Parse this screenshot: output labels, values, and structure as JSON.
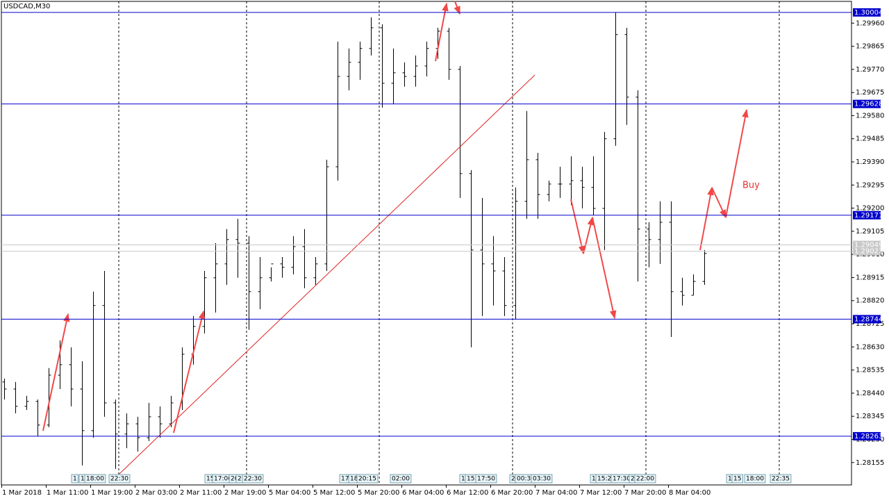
{
  "chart_data": {
    "type": "ohlc",
    "title": "USDCAD,M30",
    "categories": [
      "1 Mar 2018",
      null,
      null,
      null,
      "1 Mar 11:00",
      null,
      null,
      null,
      "1 Mar 19:00",
      null,
      null,
      null,
      "2 Mar 03:00",
      null,
      null,
      null,
      "2 Mar 11:00",
      null,
      null,
      null,
      "2 Mar 19:00",
      null,
      null,
      null,
      "5 Mar 04:00",
      null,
      null,
      null,
      "5 Mar 12:00",
      null,
      null,
      null,
      "5 Mar 20:00",
      null,
      null,
      null,
      "6 Mar 04:00",
      null,
      null,
      null,
      "6 Mar 12:00",
      null,
      null,
      null,
      "6 Mar 20:00",
      null,
      null,
      null,
      "7 Mar 04:00",
      null,
      null,
      null,
      "7 Mar 12:00",
      null,
      null,
      null,
      "7 Mar 20:00",
      null,
      null,
      null,
      "8 Mar 04:00",
      null,
      null,
      null
    ],
    "bars": [
      [
        1.28486,
        1.285,
        1.28414,
        1.28457
      ],
      [
        1.28457,
        1.28486,
        1.28357,
        1.28386
      ],
      [
        1.28386,
        1.28429,
        1.28371,
        1.28406
      ],
      [
        1.28406,
        1.28414,
        1.28263,
        1.28309
      ],
      [
        1.28309,
        1.28543,
        1.283,
        1.28514
      ],
      [
        1.28514,
        1.28657,
        1.28457,
        1.28557
      ],
      [
        1.28557,
        1.28628,
        1.28386,
        1.28457
      ],
      [
        1.28457,
        1.28571,
        1.28143,
        1.28286
      ],
      [
        1.28286,
        1.28857,
        1.28257,
        1.288
      ],
      [
        1.288,
        1.28942,
        1.28343,
        1.284
      ],
      [
        1.284,
        1.28414,
        1.28129,
        1.28272
      ],
      [
        1.28272,
        1.28357,
        1.28214,
        1.28314
      ],
      [
        1.28314,
        1.28343,
        1.282,
        1.28257
      ],
      [
        1.28257,
        1.284,
        1.28243,
        1.28343
      ],
      [
        1.28343,
        1.28386,
        1.28257,
        1.28314
      ],
      [
        1.28314,
        1.28429,
        1.283,
        1.284
      ],
      [
        1.284,
        1.28628,
        1.28371,
        1.286
      ],
      [
        1.286,
        1.28757,
        1.28557,
        1.28714
      ],
      [
        1.28714,
        1.28942,
        1.28685,
        1.28914
      ],
      [
        1.28914,
        1.29056,
        1.28771,
        1.28971
      ],
      [
        1.28971,
        1.29114,
        1.28885,
        1.29071
      ],
      [
        1.29071,
        1.29156,
        1.28914,
        1.29056
      ],
      [
        1.29056,
        1.29085,
        1.287,
        1.28857
      ],
      [
        1.28857,
        1.28999,
        1.28785,
        1.28914
      ],
      [
        1.28914,
        1.28957,
        1.28899,
        1.28971
      ],
      [
        1.28971,
        1.28999,
        1.28914,
        1.28957
      ],
      [
        1.28957,
        1.29085,
        1.28928,
        1.29042
      ],
      [
        1.29042,
        1.29114,
        1.28871,
        1.28914
      ],
      [
        1.28914,
        1.28999,
        1.28885,
        1.28971
      ],
      [
        1.28971,
        1.29399,
        1.28942,
        1.2937
      ],
      [
        1.2937,
        1.29884,
        1.29313,
        1.29741
      ],
      [
        1.29741,
        1.29856,
        1.29684,
        1.29799
      ],
      [
        1.29799,
        1.29884,
        1.29727,
        1.29856
      ],
      [
        1.29856,
        1.29984,
        1.29827,
        1.29941
      ],
      [
        1.29941,
        1.29955,
        1.29613,
        1.29713
      ],
      [
        1.29713,
        1.29856,
        1.29627,
        1.29756
      ],
      [
        1.29756,
        1.29799,
        1.29699,
        1.29741
      ],
      [
        1.29741,
        1.29827,
        1.29699,
        1.29784
      ],
      [
        1.29784,
        1.29884,
        1.29741,
        1.29856
      ],
      [
        1.29856,
        1.29941,
        1.29813,
        1.29927
      ],
      [
        1.29927,
        1.29941,
        1.29727,
        1.2977
      ],
      [
        1.2977,
        1.29784,
        1.29242,
        1.29342
      ],
      [
        1.29342,
        1.29356,
        1.28628,
        1.29028
      ],
      [
        1.29028,
        1.29242,
        1.28757,
        1.28971
      ],
      [
        1.28971,
        1.29085,
        1.288,
        1.28942
      ],
      [
        1.28942,
        1.28999,
        1.28757,
        1.288
      ],
      [
        1.288,
        1.29285,
        1.28742,
        1.29228
      ],
      [
        1.29228,
        1.29599,
        1.29156,
        1.29399
      ],
      [
        1.29399,
        1.29427,
        1.29156,
        1.29256
      ],
      [
        1.29256,
        1.29313,
        1.29228,
        1.29299
      ],
      [
        1.29299,
        1.2937,
        1.29242,
        1.29299
      ],
      [
        1.29299,
        1.29413,
        1.29213,
        1.29313
      ],
      [
        1.29313,
        1.2937,
        1.29199,
        1.29285
      ],
      [
        1.29285,
        1.29413,
        1.29171,
        1.29199
      ],
      [
        1.29199,
        1.29513,
        1.29028,
        1.29485
      ],
      [
        1.29485,
        1.30004,
        1.29456,
        1.29913
      ],
      [
        1.29913,
        1.29941,
        1.29542,
        1.29656
      ],
      [
        1.29656,
        1.29684,
        1.28899,
        1.29114
      ],
      [
        1.29114,
        1.29142,
        1.28957,
        1.29071
      ],
      [
        1.29071,
        1.29228,
        1.28971,
        1.29142
      ],
      [
        1.29142,
        1.29228,
        1.28671,
        1.28857
      ],
      [
        1.28857,
        1.28914,
        1.288,
        1.28842
      ],
      [
        1.28842,
        1.28928,
        1.28842,
        1.28899
      ],
      [
        1.28899,
        1.29028,
        1.28885,
        1.29014
      ]
    ],
    "color": "#000000",
    "ylim": [
      1.28063,
      1.30055
    ],
    "yticks": [
      {
        "value": 1.2996,
        "label": "1.29960"
      },
      1.29865,
      {
        "value": 1.2977,
        "label": "1.29770"
      },
      1.29675,
      {
        "value": 1.2958,
        "label": "1.29580"
      },
      1.29485,
      {
        "value": 1.2939,
        "label": "1.29390"
      },
      1.29295,
      {
        "value": 1.292,
        "label": "1.29200"
      },
      1.29105,
      {
        "value": 1.2901,
        "label": "1.29010"
      },
      1.28915,
      {
        "value": 1.2882,
        "label": "1.28820"
      },
      1.28725,
      {
        "value": 1.2863,
        "label": "1.28630"
      },
      1.28535,
      {
        "value": 1.2844,
        "label": "1.28440"
      },
      1.28345,
      {
        "value": 1.2825,
        "label": "1.28250"
      },
      1.28155
    ],
    "levels": [
      1.30004,
      1.29628,
      1.29171,
      1.28744,
      1.28263
    ],
    "level_color": "#0000cc",
    "price_lines": [
      1.29049,
      1.29023
    ],
    "annotations": [
      "Buy"
    ],
    "events": [
      "1",
      "1",
      "18:00",
      "22:30",
      "15",
      "17:00",
      "20",
      "2",
      "22:30",
      "17",
      "18",
      "20:15",
      "02:00",
      "1",
      "15",
      "17:50",
      "2",
      "00:30",
      "03:30",
      "1",
      "15:20",
      "17:30",
      "2",
      "22:00",
      "1",
      "15",
      "18:00",
      "22:35"
    ]
  }
}
